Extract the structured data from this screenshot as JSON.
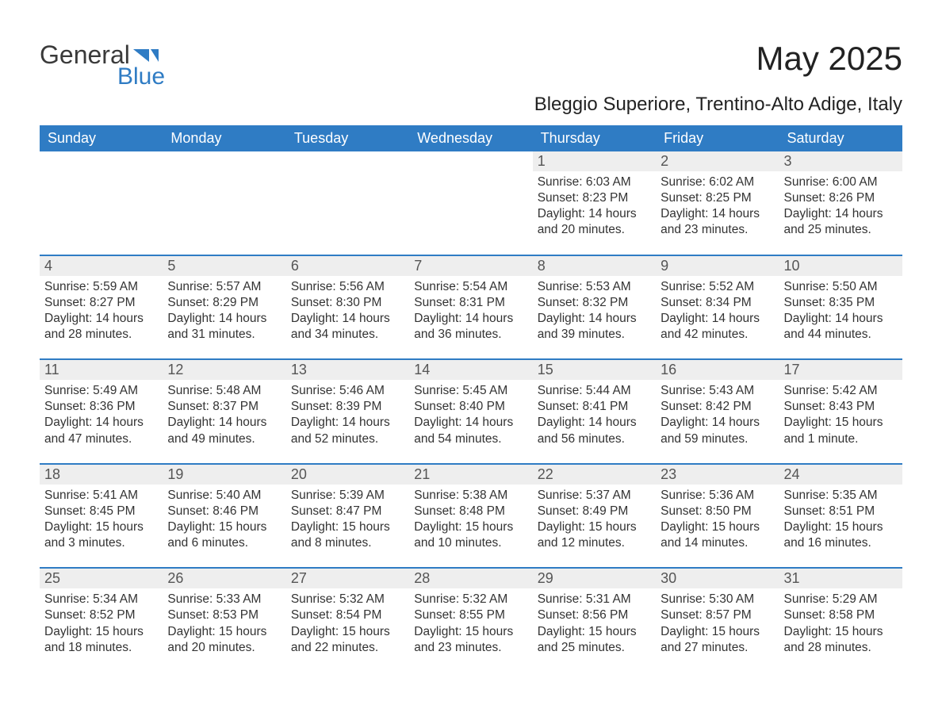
{
  "brand": {
    "text_main": "General",
    "text_accent": "Blue",
    "text_color": "#3a3a3a",
    "accent_color": "#2f7cc4"
  },
  "title": "May 2025",
  "subtitle": "Bleggio Superiore, Trentino-Alto Adige, Italy",
  "colors": {
    "header_bg": "#2f7cc4",
    "header_text": "#ffffff",
    "daynum_bg": "#eeeeee",
    "daynum_text": "#555555",
    "body_text": "#333333",
    "divider": "#2f7cc4",
    "page_bg": "#ffffff"
  },
  "days_of_week": [
    "Sunday",
    "Monday",
    "Tuesday",
    "Wednesday",
    "Thursday",
    "Friday",
    "Saturday"
  ],
  "labels": {
    "sunrise": "Sunrise:",
    "sunset": "Sunset:",
    "daylight": "Daylight:"
  },
  "weeks": [
    [
      null,
      null,
      null,
      null,
      {
        "n": "1",
        "sunrise": "6:03 AM",
        "sunset": "8:23 PM",
        "daylight": "14 hours and 20 minutes."
      },
      {
        "n": "2",
        "sunrise": "6:02 AM",
        "sunset": "8:25 PM",
        "daylight": "14 hours and 23 minutes."
      },
      {
        "n": "3",
        "sunrise": "6:00 AM",
        "sunset": "8:26 PM",
        "daylight": "14 hours and 25 minutes."
      }
    ],
    [
      {
        "n": "4",
        "sunrise": "5:59 AM",
        "sunset": "8:27 PM",
        "daylight": "14 hours and 28 minutes."
      },
      {
        "n": "5",
        "sunrise": "5:57 AM",
        "sunset": "8:29 PM",
        "daylight": "14 hours and 31 minutes."
      },
      {
        "n": "6",
        "sunrise": "5:56 AM",
        "sunset": "8:30 PM",
        "daylight": "14 hours and 34 minutes."
      },
      {
        "n": "7",
        "sunrise": "5:54 AM",
        "sunset": "8:31 PM",
        "daylight": "14 hours and 36 minutes."
      },
      {
        "n": "8",
        "sunrise": "5:53 AM",
        "sunset": "8:32 PM",
        "daylight": "14 hours and 39 minutes."
      },
      {
        "n": "9",
        "sunrise": "5:52 AM",
        "sunset": "8:34 PM",
        "daylight": "14 hours and 42 minutes."
      },
      {
        "n": "10",
        "sunrise": "5:50 AM",
        "sunset": "8:35 PM",
        "daylight": "14 hours and 44 minutes."
      }
    ],
    [
      {
        "n": "11",
        "sunrise": "5:49 AM",
        "sunset": "8:36 PM",
        "daylight": "14 hours and 47 minutes."
      },
      {
        "n": "12",
        "sunrise": "5:48 AM",
        "sunset": "8:37 PM",
        "daylight": "14 hours and 49 minutes."
      },
      {
        "n": "13",
        "sunrise": "5:46 AM",
        "sunset": "8:39 PM",
        "daylight": "14 hours and 52 minutes."
      },
      {
        "n": "14",
        "sunrise": "5:45 AM",
        "sunset": "8:40 PM",
        "daylight": "14 hours and 54 minutes."
      },
      {
        "n": "15",
        "sunrise": "5:44 AM",
        "sunset": "8:41 PM",
        "daylight": "14 hours and 56 minutes."
      },
      {
        "n": "16",
        "sunrise": "5:43 AM",
        "sunset": "8:42 PM",
        "daylight": "14 hours and 59 minutes."
      },
      {
        "n": "17",
        "sunrise": "5:42 AM",
        "sunset": "8:43 PM",
        "daylight": "15 hours and 1 minute."
      }
    ],
    [
      {
        "n": "18",
        "sunrise": "5:41 AM",
        "sunset": "8:45 PM",
        "daylight": "15 hours and 3 minutes."
      },
      {
        "n": "19",
        "sunrise": "5:40 AM",
        "sunset": "8:46 PM",
        "daylight": "15 hours and 6 minutes."
      },
      {
        "n": "20",
        "sunrise": "5:39 AM",
        "sunset": "8:47 PM",
        "daylight": "15 hours and 8 minutes."
      },
      {
        "n": "21",
        "sunrise": "5:38 AM",
        "sunset": "8:48 PM",
        "daylight": "15 hours and 10 minutes."
      },
      {
        "n": "22",
        "sunrise": "5:37 AM",
        "sunset": "8:49 PM",
        "daylight": "15 hours and 12 minutes."
      },
      {
        "n": "23",
        "sunrise": "5:36 AM",
        "sunset": "8:50 PM",
        "daylight": "15 hours and 14 minutes."
      },
      {
        "n": "24",
        "sunrise": "5:35 AM",
        "sunset": "8:51 PM",
        "daylight": "15 hours and 16 minutes."
      }
    ],
    [
      {
        "n": "25",
        "sunrise": "5:34 AM",
        "sunset": "8:52 PM",
        "daylight": "15 hours and 18 minutes."
      },
      {
        "n": "26",
        "sunrise": "5:33 AM",
        "sunset": "8:53 PM",
        "daylight": "15 hours and 20 minutes."
      },
      {
        "n": "27",
        "sunrise": "5:32 AM",
        "sunset": "8:54 PM",
        "daylight": "15 hours and 22 minutes."
      },
      {
        "n": "28",
        "sunrise": "5:32 AM",
        "sunset": "8:55 PM",
        "daylight": "15 hours and 23 minutes."
      },
      {
        "n": "29",
        "sunrise": "5:31 AM",
        "sunset": "8:56 PM",
        "daylight": "15 hours and 25 minutes."
      },
      {
        "n": "30",
        "sunrise": "5:30 AM",
        "sunset": "8:57 PM",
        "daylight": "15 hours and 27 minutes."
      },
      {
        "n": "31",
        "sunrise": "5:29 AM",
        "sunset": "8:58 PM",
        "daylight": "15 hours and 28 minutes."
      }
    ]
  ]
}
